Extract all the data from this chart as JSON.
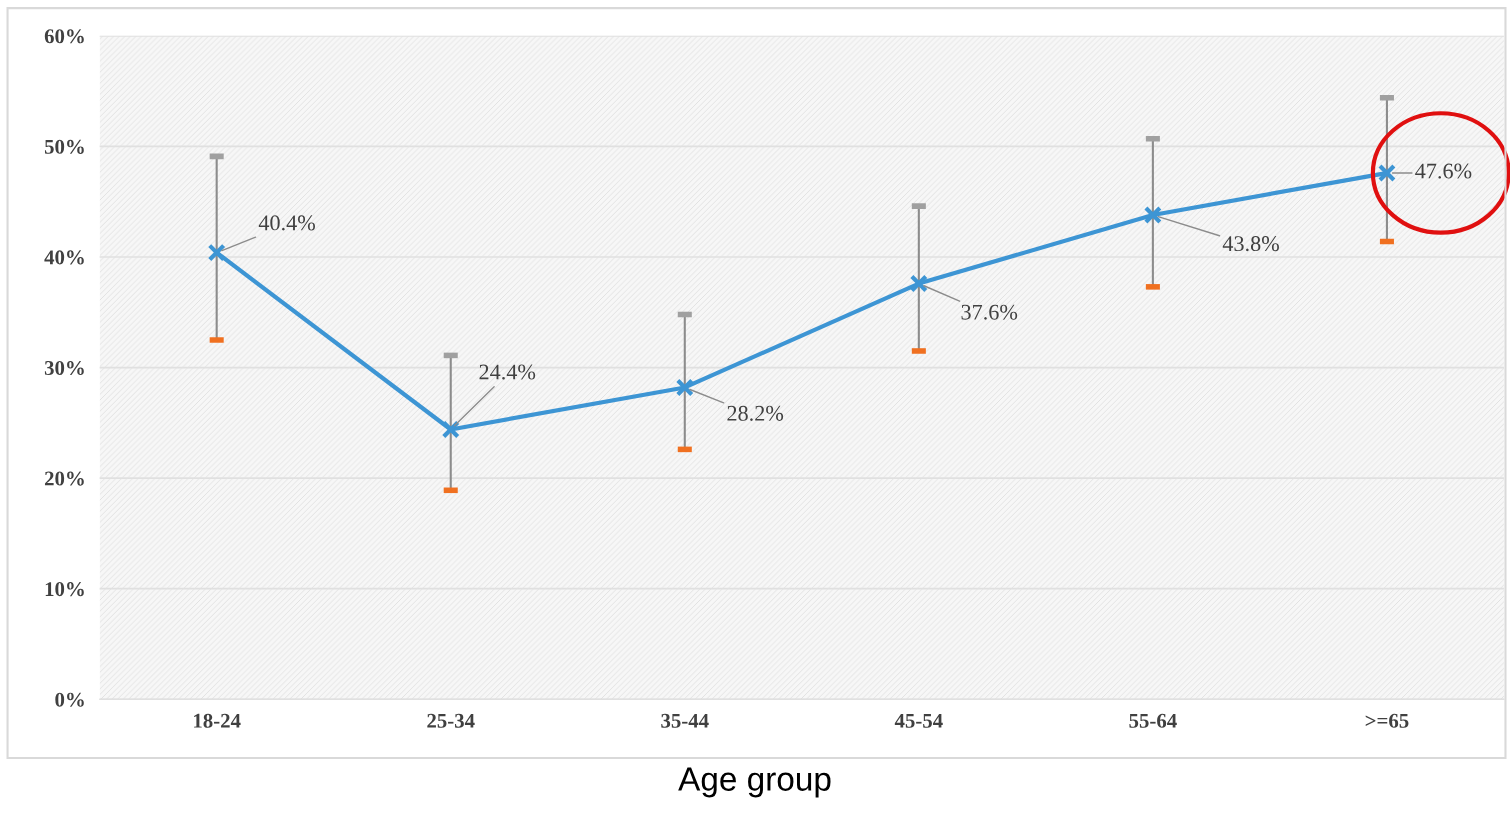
{
  "chart_data": {
    "type": "line",
    "xlabel": "Age group",
    "categories": [
      "18-24",
      "25-34",
      "35-44",
      "45-54",
      "55-64",
      ">=65"
    ],
    "series": [
      {
        "color": "#3d95d4",
        "values": [
          40.4,
          24.4,
          28.2,
          37.6,
          43.8,
          47.6
        ],
        "value_labels": [
          "40.4%",
          "24.4%",
          "28.2%",
          "37.6%",
          "43.8%",
          "47.6%"
        ],
        "errors": [
          [
            32.5,
            49.1
          ],
          [
            18.9,
            31.1
          ],
          [
            22.6,
            34.8
          ],
          [
            31.5,
            44.6
          ],
          [
            37.3,
            50.7
          ],
          [
            41.4,
            54.4
          ]
        ]
      }
    ],
    "ylim": [
      0,
      60
    ],
    "yticks": [
      {
        "value": 0,
        "label": "0%"
      },
      {
        "value": 10,
        "label": "10%"
      },
      {
        "value": 20,
        "label": "20%"
      },
      {
        "value": 30,
        "label": "30%"
      },
      {
        "value": 40,
        "label": "40%"
      },
      {
        "value": 50,
        "label": "50%"
      },
      {
        "value": 60,
        "label": "60%"
      }
    ],
    "grid": "y",
    "marker": "cross",
    "line_style": "solid"
  }
}
